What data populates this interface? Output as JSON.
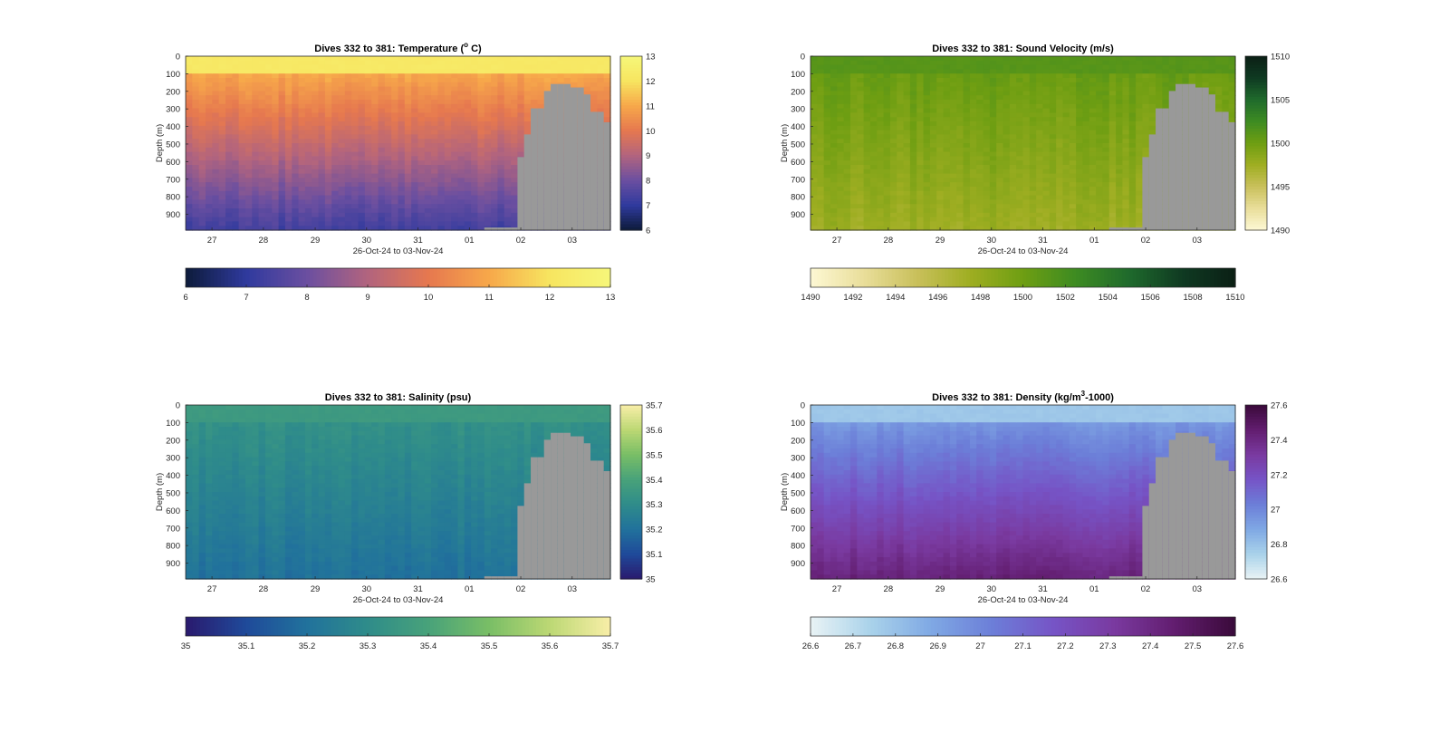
{
  "chart_data": [
    {
      "type": "heatmap",
      "title": "Dives 332 to 381: Temperature (",
      "title_sup": "o",
      "title_end": " C)",
      "ylabel": "Depth (m)",
      "xlabel": "26-Oct-24 to 03-Nov-24",
      "x_ticks": [
        "27",
        "28",
        "29",
        "30",
        "31",
        "01",
        "02",
        "03"
      ],
      "y_ticks": [
        "0",
        "100",
        "200",
        "300",
        "400",
        "500",
        "600",
        "700",
        "800",
        "900"
      ],
      "ylim": [
        0,
        990
      ],
      "colormap": [
        "#0d1b3a",
        "#2f3a9e",
        "#6b4fa0",
        "#b2647e",
        "#e6784f",
        "#f7a84a",
        "#f7e560",
        "#f6f77a"
      ],
      "clim": [
        6,
        13
      ],
      "colorbar_ticks": [
        "13",
        "12",
        "11",
        "10",
        "9",
        "8",
        "7",
        "6"
      ],
      "h_colorbar_ticks": [
        "6",
        "7",
        "8",
        "9",
        "10",
        "11",
        "12",
        "13"
      ],
      "surface_value": 12.2,
      "deep_value": 7.3,
      "below_gray": "#999999"
    },
    {
      "type": "heatmap",
      "title": "Dives 332 to 381: Sound Velocity (m/s)",
      "ylabel": "Depth (m)",
      "xlabel": "26-Oct-24 to 03-Nov-24",
      "x_ticks": [
        "27",
        "28",
        "29",
        "30",
        "31",
        "01",
        "02",
        "03"
      ],
      "y_ticks": [
        "0",
        "100",
        "200",
        "300",
        "400",
        "500",
        "600",
        "700",
        "800",
        "900"
      ],
      "ylim": [
        0,
        990
      ],
      "colormap": [
        "#fdf8d4",
        "#e9de9a",
        "#c9c05b",
        "#9fae22",
        "#6e9e12",
        "#3d8b22",
        "#1f6a2c",
        "#0f3a22",
        "#0b1f15"
      ],
      "clim": [
        1490,
        1510
      ],
      "colorbar_ticks": [
        "1510",
        "1505",
        "1500",
        "1495",
        "1490"
      ],
      "h_colorbar_ticks": [
        "1490",
        "1492",
        "1494",
        "1496",
        "1498",
        "1500",
        "1502",
        "1504",
        "1506",
        "1508",
        "1510"
      ],
      "surface_value": 1501.2,
      "deep_value": 1497.5,
      "below_gray": "#999999"
    },
    {
      "type": "heatmap",
      "title": "Dives 332 to 381: Salinity (psu)",
      "ylabel": "Depth (m)",
      "xlabel": "26-Oct-24 to 03-Nov-24",
      "x_ticks": [
        "27",
        "28",
        "29",
        "30",
        "31",
        "01",
        "02",
        "03"
      ],
      "y_ticks": [
        "0",
        "100",
        "200",
        "300",
        "400",
        "500",
        "600",
        "700",
        "800",
        "900"
      ],
      "ylim": [
        0,
        990
      ],
      "colormap": [
        "#2a1a6e",
        "#1f4a9a",
        "#21729c",
        "#2f8c8a",
        "#48a27a",
        "#79be66",
        "#bcd874",
        "#f8eea8"
      ],
      "clim": [
        35,
        35.7
      ],
      "colorbar_ticks": [
        "35.7",
        "35.6",
        "35.5",
        "35.4",
        "35.3",
        "35.2",
        "35.1",
        "35"
      ],
      "h_colorbar_ticks": [
        "35",
        "35.1",
        "35.2",
        "35.3",
        "35.4",
        "35.5",
        "35.6",
        "35.7"
      ],
      "surface_value": 35.36,
      "deep_value": 35.2,
      "below_gray": "#999999"
    },
    {
      "type": "heatmap",
      "title": "Dives 332 to 381: Density (kg/m",
      "title_sup": "3",
      "title_end": "-1000)",
      "ylabel": "Depth (m)",
      "xlabel": "26-Oct-24 to 03-Nov-24",
      "x_ticks": [
        "27",
        "28",
        "29",
        "30",
        "31",
        "01",
        "02",
        "03"
      ],
      "y_ticks": [
        "0",
        "100",
        "200",
        "300",
        "400",
        "500",
        "600",
        "700",
        "800",
        "900"
      ],
      "ylim": [
        0,
        990
      ],
      "colormap": [
        "#e9f3f5",
        "#a9d2ea",
        "#7fa8e4",
        "#6c7ed8",
        "#7654c6",
        "#7a3aa0",
        "#621d6f",
        "#3a0a3a"
      ],
      "clim": [
        26.6,
        27.6
      ],
      "colorbar_ticks": [
        "27.6",
        "27.4",
        "27.2",
        "27",
        "26.8",
        "26.6"
      ],
      "h_colorbar_ticks": [
        "26.6",
        "26.7",
        "26.8",
        "26.9",
        "27",
        "27.1",
        "27.2",
        "27.3",
        "27.4",
        "27.5",
        "27.6"
      ],
      "surface_value": 26.78,
      "deep_value": 27.43,
      "below_gray": "#999999"
    }
  ]
}
